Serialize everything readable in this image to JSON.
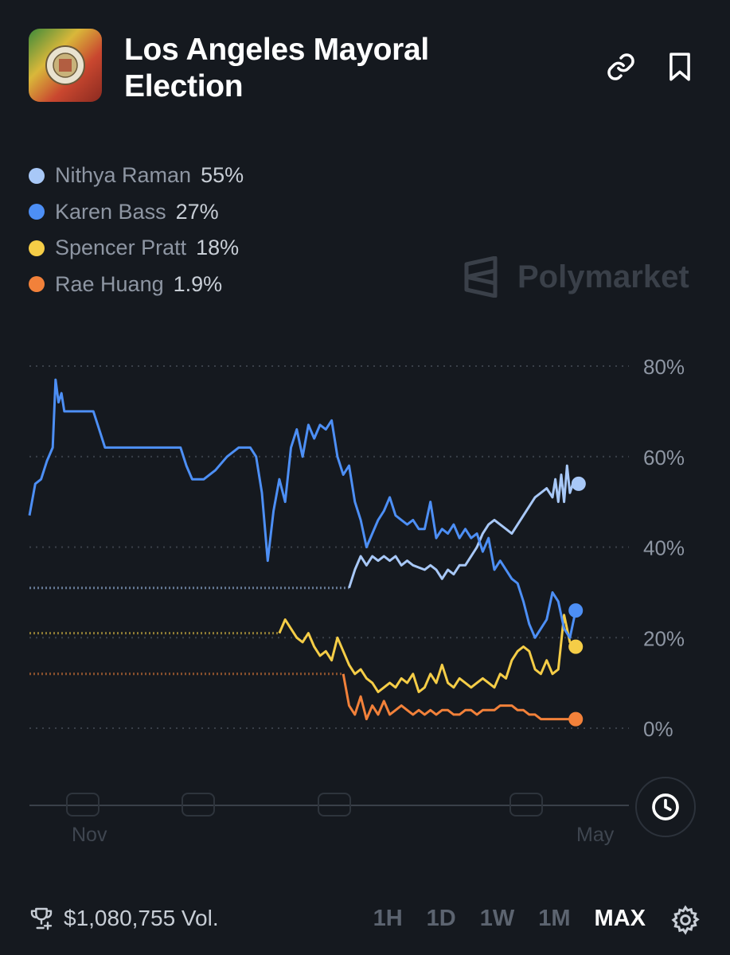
{
  "header": {
    "title": "Los Angeles Mayoral Election"
  },
  "legend": [
    {
      "name": "Nithya Raman",
      "pct": "55%",
      "color": "#a8c8f7"
    },
    {
      "name": "Karen Bass",
      "pct": "27%",
      "color": "#4d8ff5"
    },
    {
      "name": "Spencer Pratt",
      "pct": "18%",
      "color": "#f5cd47"
    },
    {
      "name": "Rae Huang",
      "pct": "1.9%",
      "color": "#f2813a"
    }
  ],
  "brand": "Polymarket",
  "footer": {
    "volume": "$1,080,755 Vol.",
    "ranges": [
      "1H",
      "1D",
      "1W",
      "1M",
      "MAX"
    ],
    "active_range": "MAX"
  },
  "chart_data": {
    "type": "line",
    "y_ticks": [
      "80%",
      "60%",
      "40%",
      "20%",
      "0%"
    ],
    "ylim": [
      0,
      80
    ],
    "x_ticks": [
      "Nov",
      "May"
    ],
    "grid": true,
    "series": [
      {
        "name": "Nithya Raman",
        "color": "#a8c8f7",
        "values": [
          [
            0.55,
            31
          ],
          [
            0.56,
            35
          ],
          [
            0.57,
            38
          ],
          [
            0.58,
            36
          ],
          [
            0.59,
            38
          ],
          [
            0.6,
            37
          ],
          [
            0.61,
            38
          ],
          [
            0.62,
            37
          ],
          [
            0.63,
            38
          ],
          [
            0.64,
            36
          ],
          [
            0.65,
            37
          ],
          [
            0.66,
            36
          ],
          [
            0.68,
            35
          ],
          [
            0.69,
            36
          ],
          [
            0.7,
            35
          ],
          [
            0.71,
            33
          ],
          [
            0.72,
            35
          ],
          [
            0.73,
            34
          ],
          [
            0.74,
            36
          ],
          [
            0.75,
            36
          ],
          [
            0.76,
            38
          ],
          [
            0.77,
            40
          ],
          [
            0.78,
            43
          ],
          [
            0.79,
            45
          ],
          [
            0.8,
            46
          ],
          [
            0.81,
            45
          ],
          [
            0.82,
            44
          ],
          [
            0.83,
            43
          ],
          [
            0.84,
            45
          ],
          [
            0.85,
            47
          ],
          [
            0.86,
            49
          ],
          [
            0.87,
            51
          ],
          [
            0.88,
            52
          ],
          [
            0.89,
            53
          ],
          [
            0.9,
            51
          ],
          [
            0.905,
            55
          ],
          [
            0.91,
            50
          ],
          [
            0.915,
            56
          ],
          [
            0.92,
            50
          ],
          [
            0.925,
            58
          ],
          [
            0.93,
            52
          ],
          [
            0.935,
            54
          ],
          [
            0.94,
            54
          ],
          [
            0.945,
            54
          ]
        ]
      },
      {
        "name": "Karen Bass",
        "color": "#4d8ff5",
        "values": [
          [
            0,
            47
          ],
          [
            0.01,
            54
          ],
          [
            0.02,
            55
          ],
          [
            0.03,
            59
          ],
          [
            0.04,
            62
          ],
          [
            0.045,
            77
          ],
          [
            0.05,
            72
          ],
          [
            0.055,
            74
          ],
          [
            0.06,
            70
          ],
          [
            0.08,
            70
          ],
          [
            0.11,
            70
          ],
          [
            0.12,
            66
          ],
          [
            0.13,
            62
          ],
          [
            0.2,
            62
          ],
          [
            0.26,
            62
          ],
          [
            0.27,
            58
          ],
          [
            0.28,
            55
          ],
          [
            0.3,
            55
          ],
          [
            0.32,
            57
          ],
          [
            0.34,
            60
          ],
          [
            0.36,
            62
          ],
          [
            0.38,
            62
          ],
          [
            0.39,
            60
          ],
          [
            0.4,
            52
          ],
          [
            0.41,
            37
          ],
          [
            0.42,
            48
          ],
          [
            0.43,
            55
          ],
          [
            0.44,
            50
          ],
          [
            0.45,
            62
          ],
          [
            0.46,
            66
          ],
          [
            0.47,
            60
          ],
          [
            0.48,
            67
          ],
          [
            0.49,
            64
          ],
          [
            0.5,
            67
          ],
          [
            0.51,
            66
          ],
          [
            0.52,
            68
          ],
          [
            0.53,
            60
          ],
          [
            0.54,
            56
          ],
          [
            0.55,
            58
          ],
          [
            0.56,
            50
          ],
          [
            0.57,
            46
          ],
          [
            0.58,
            40
          ],
          [
            0.59,
            43
          ],
          [
            0.6,
            46
          ],
          [
            0.61,
            48
          ],
          [
            0.62,
            51
          ],
          [
            0.63,
            47
          ],
          [
            0.64,
            46
          ],
          [
            0.65,
            45
          ],
          [
            0.66,
            46
          ],
          [
            0.67,
            44
          ],
          [
            0.68,
            44
          ],
          [
            0.69,
            50
          ],
          [
            0.7,
            42
          ],
          [
            0.71,
            44
          ],
          [
            0.72,
            43
          ],
          [
            0.73,
            45
          ],
          [
            0.74,
            42
          ],
          [
            0.75,
            44
          ],
          [
            0.76,
            42
          ],
          [
            0.77,
            43
          ],
          [
            0.78,
            39
          ],
          [
            0.79,
            42
          ],
          [
            0.8,
            35
          ],
          [
            0.81,
            37
          ],
          [
            0.82,
            35
          ],
          [
            0.83,
            33
          ],
          [
            0.84,
            32
          ],
          [
            0.85,
            28
          ],
          [
            0.86,
            23
          ],
          [
            0.87,
            20
          ],
          [
            0.88,
            22
          ],
          [
            0.89,
            24
          ],
          [
            0.9,
            30
          ],
          [
            0.91,
            28
          ],
          [
            0.92,
            22
          ],
          [
            0.93,
            20
          ],
          [
            0.94,
            26
          ]
        ]
      },
      {
        "name": "Spencer Pratt",
        "color": "#f5cd47",
        "values": [
          [
            0.43,
            21
          ],
          [
            0.44,
            24
          ],
          [
            0.45,
            22
          ],
          [
            0.46,
            20
          ],
          [
            0.47,
            19
          ],
          [
            0.48,
            21
          ],
          [
            0.49,
            18
          ],
          [
            0.5,
            16
          ],
          [
            0.51,
            17
          ],
          [
            0.52,
            15
          ],
          [
            0.53,
            20
          ],
          [
            0.54,
            17
          ],
          [
            0.55,
            14
          ],
          [
            0.56,
            12
          ],
          [
            0.57,
            13
          ],
          [
            0.58,
            11
          ],
          [
            0.59,
            10
          ],
          [
            0.6,
            8
          ],
          [
            0.61,
            9
          ],
          [
            0.62,
            10
          ],
          [
            0.63,
            9
          ],
          [
            0.64,
            11
          ],
          [
            0.65,
            10
          ],
          [
            0.66,
            12
          ],
          [
            0.67,
            8
          ],
          [
            0.68,
            9
          ],
          [
            0.69,
            12
          ],
          [
            0.7,
            10
          ],
          [
            0.71,
            14
          ],
          [
            0.72,
            10
          ],
          [
            0.73,
            9
          ],
          [
            0.74,
            11
          ],
          [
            0.75,
            10
          ],
          [
            0.76,
            9
          ],
          [
            0.77,
            10
          ],
          [
            0.78,
            11
          ],
          [
            0.79,
            10
          ],
          [
            0.8,
            9
          ],
          [
            0.81,
            12
          ],
          [
            0.82,
            11
          ],
          [
            0.83,
            15
          ],
          [
            0.84,
            17
          ],
          [
            0.85,
            18
          ],
          [
            0.86,
            17
          ],
          [
            0.87,
            13
          ],
          [
            0.88,
            12
          ],
          [
            0.89,
            15
          ],
          [
            0.9,
            12
          ],
          [
            0.91,
            13
          ],
          [
            0.92,
            25
          ],
          [
            0.93,
            19
          ],
          [
            0.94,
            18
          ]
        ]
      },
      {
        "name": "Rae Huang",
        "color": "#f2813a",
        "values": [
          [
            0.54,
            12
          ],
          [
            0.55,
            5
          ],
          [
            0.56,
            3
          ],
          [
            0.57,
            7
          ],
          [
            0.58,
            2
          ],
          [
            0.59,
            5
          ],
          [
            0.6,
            3
          ],
          [
            0.61,
            6
          ],
          [
            0.62,
            3
          ],
          [
            0.63,
            4
          ],
          [
            0.64,
            5
          ],
          [
            0.65,
            4
          ],
          [
            0.66,
            3
          ],
          [
            0.67,
            4
          ],
          [
            0.68,
            3
          ],
          [
            0.69,
            4
          ],
          [
            0.7,
            3
          ],
          [
            0.71,
            4
          ],
          [
            0.72,
            4
          ],
          [
            0.73,
            3
          ],
          [
            0.74,
            3
          ],
          [
            0.75,
            4
          ],
          [
            0.76,
            4
          ],
          [
            0.77,
            3
          ],
          [
            0.78,
            4
          ],
          [
            0.79,
            4
          ],
          [
            0.8,
            4
          ],
          [
            0.81,
            5
          ],
          [
            0.82,
            5
          ],
          [
            0.83,
            5
          ],
          [
            0.84,
            4
          ],
          [
            0.85,
            4
          ],
          [
            0.86,
            3
          ],
          [
            0.87,
            3
          ],
          [
            0.88,
            2
          ],
          [
            0.89,
            2
          ],
          [
            0.9,
            2
          ],
          [
            0.91,
            2
          ],
          [
            0.92,
            2
          ],
          [
            0.93,
            2
          ],
          [
            0.94,
            2
          ]
        ]
      }
    ]
  }
}
